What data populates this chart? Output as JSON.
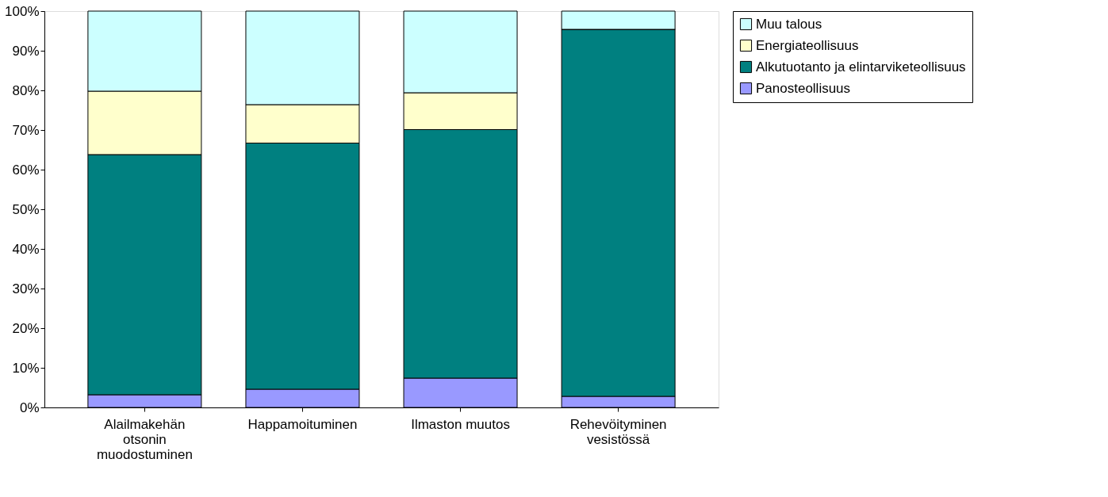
{
  "chart_data": {
    "type": "bar",
    "stacked": true,
    "categories": [
      "Alailmakehän otsonin muodostuminen",
      "Happamoituminen",
      "Ilmaston muutos",
      "Rehevöityminen vesistössä"
    ],
    "series": [
      {
        "name": "Panosteollisuus",
        "color": "#9999ff",
        "values": [
          3.2,
          4.6,
          7.4,
          2.8
        ]
      },
      {
        "name": "Alkutuotanto ja elintarviketeollisuus",
        "color": "#008080",
        "values": [
          60.6,
          62.1,
          62.7,
          92.6
        ]
      },
      {
        "name": "Energiateollisuus",
        "color": "#ffffcc",
        "values": [
          16.0,
          9.7,
          9.3,
          0
        ]
      },
      {
        "name": "Muu talous",
        "color": "#ccffff",
        "values": [
          20.2,
          23.6,
          20.6,
          4.6
        ]
      }
    ],
    "ylim": [
      0,
      100
    ],
    "yticks": [
      {
        "value": 0,
        "label": "0%"
      },
      {
        "value": 10,
        "label": "10%"
      },
      {
        "value": 20,
        "label": "20%"
      },
      {
        "value": 30,
        "label": "30%"
      },
      {
        "value": 40,
        "label": "40%"
      },
      {
        "value": 50,
        "label": "50%"
      },
      {
        "value": 60,
        "label": "60%"
      },
      {
        "value": 70,
        "label": "70%"
      },
      {
        "value": 80,
        "label": "80%"
      },
      {
        "value": 90,
        "label": "90%"
      },
      {
        "value": 100,
        "label": "100%"
      }
    ],
    "grid": false,
    "legend": "right"
  }
}
